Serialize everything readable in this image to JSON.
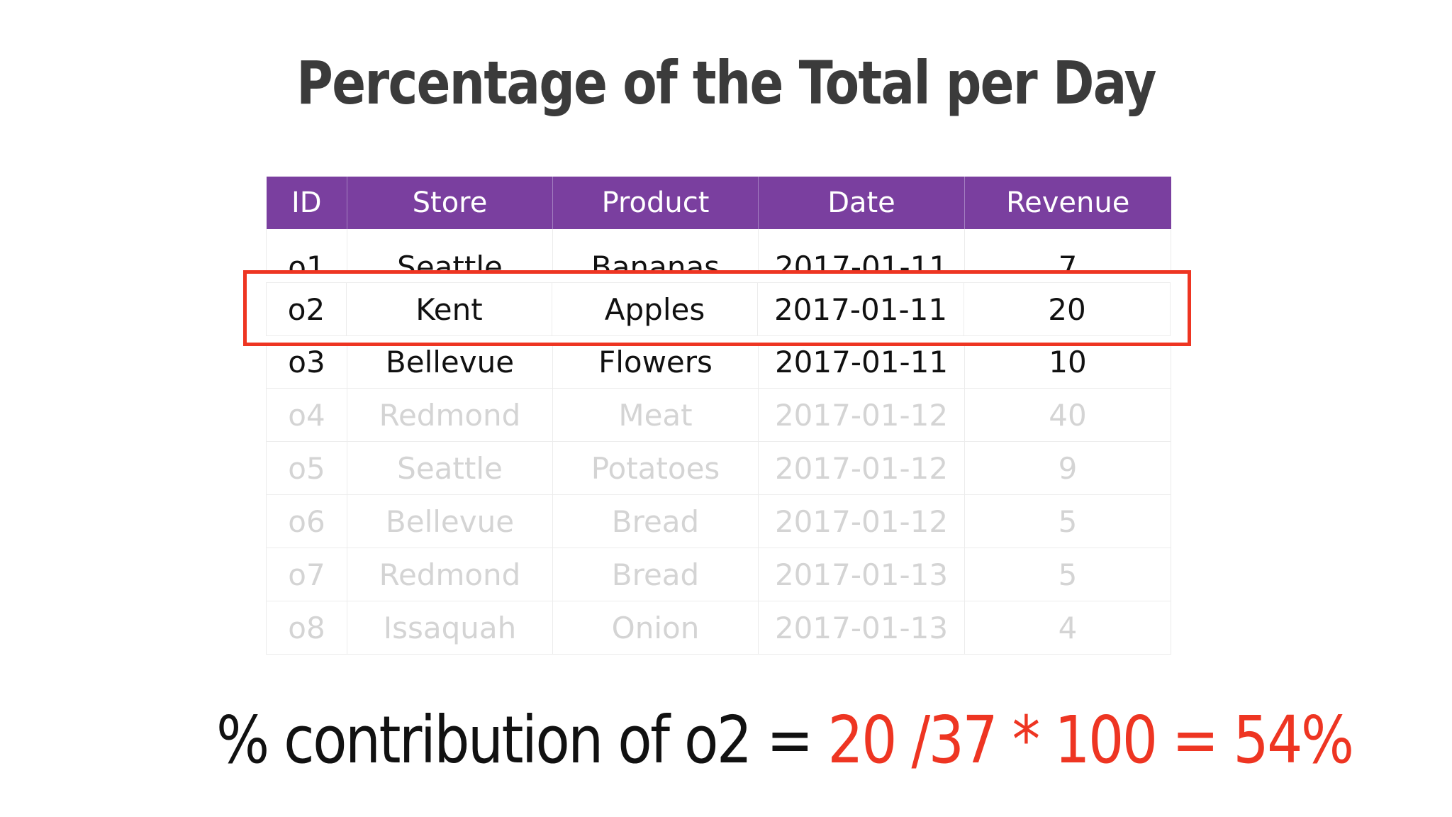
{
  "title": "Percentage of the Total per Day",
  "table": {
    "headers": [
      "ID",
      "Store",
      "Product",
      "Date",
      "Revenue"
    ],
    "rows": [
      [
        "o1",
        "Seattle",
        "Bananas",
        "2017-01-11",
        "7"
      ],
      [
        "o2",
        "Kent",
        "Apples",
        "2017-01-11",
        "20"
      ],
      [
        "o3",
        "Bellevue",
        "Flowers",
        "2017-01-11",
        "10"
      ],
      [
        "o4",
        "Redmond",
        "Meat",
        "2017-01-12",
        "40"
      ],
      [
        "o5",
        "Seattle",
        "Potatoes",
        "2017-01-12",
        "9"
      ],
      [
        "o6",
        "Bellevue",
        "Bread",
        "2017-01-12",
        "5"
      ],
      [
        "o7",
        "Redmond",
        "Bread",
        "2017-01-13",
        "5"
      ],
      [
        "o8",
        "Issaquah",
        "Onion",
        "2017-01-13",
        "4"
      ]
    ],
    "highlighted_row_index": 1,
    "header_color": "#7a3f9f",
    "highlight_color": "#ee3522",
    "dimmed_text_color": "#d4d4d4"
  },
  "formula": {
    "label": "% contribution of o2 =",
    "calculation": "20 /37 * 100 = 54%",
    "calculation_color": "#ee3522"
  }
}
